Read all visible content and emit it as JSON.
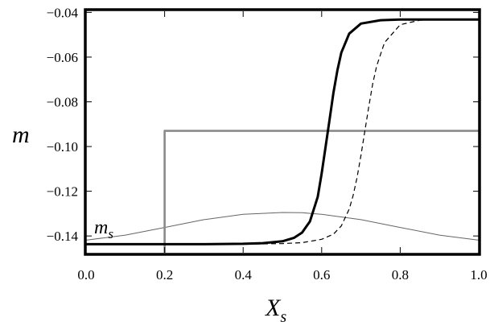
{
  "chart_data": {
    "type": "line",
    "xlabel": "X",
    "xlabel_sub": "s",
    "ylabel": "m",
    "annotation": {
      "text": "m",
      "sub": "s"
    },
    "xlim": [
      0.0,
      1.0
    ],
    "ylim": [
      -0.1475,
      -0.0395
    ],
    "xticks": [
      0.0,
      0.2,
      0.4,
      0.6,
      0.8,
      1.0
    ],
    "xtick_labels": [
      "0.0",
      "0.2",
      "0.4",
      "0.6",
      "0.8",
      "1.0"
    ],
    "yticks": [
      -0.14,
      -0.12,
      -0.1,
      -0.08,
      -0.06,
      -0.04
    ],
    "ytick_labels": [
      "−0.14",
      "−0.12",
      "−0.10",
      "−0.08",
      "−0.06",
      "−0.04"
    ],
    "grid": false,
    "legend": "none",
    "series": [
      {
        "style": "thick-solid",
        "color": "#000000",
        "x": [
          0.0,
          0.3,
          0.4,
          0.45,
          0.5,
          0.53,
          0.55,
          0.57,
          0.59,
          0.6,
          0.61,
          0.62,
          0.63,
          0.64,
          0.65,
          0.67,
          0.7,
          0.75,
          0.8,
          0.9,
          1.0
        ],
        "y": [
          -0.1437,
          -0.1437,
          -0.1435,
          -0.1432,
          -0.1424,
          -0.1408,
          -0.1385,
          -0.1335,
          -0.1225,
          -0.112,
          -0.1,
          -0.088,
          -0.076,
          -0.066,
          -0.058,
          -0.0495,
          -0.045,
          -0.0435,
          -0.0432,
          -0.0432,
          -0.0432
        ]
      },
      {
        "style": "dashed",
        "color": "#000000",
        "x": [
          0.0,
          0.4,
          0.5,
          0.55,
          0.6,
          0.63,
          0.65,
          0.67,
          0.68,
          0.69,
          0.7,
          0.71,
          0.72,
          0.73,
          0.74,
          0.76,
          0.8,
          0.85,
          0.9,
          1.0
        ],
        "y": [
          -0.1437,
          -0.1437,
          -0.1434,
          -0.143,
          -0.1415,
          -0.1392,
          -0.1355,
          -0.128,
          -0.122,
          -0.114,
          -0.104,
          -0.093,
          -0.082,
          -0.072,
          -0.064,
          -0.0535,
          -0.0455,
          -0.0435,
          -0.0432,
          -0.0432
        ]
      },
      {
        "style": "gray-step",
        "color": "#8a8a8a",
        "x": [
          0.2,
          0.2,
          1.0
        ],
        "y": [
          -0.1475,
          -0.093,
          -0.093
        ]
      },
      {
        "style": "thin-gray",
        "color": "#666666",
        "x": [
          0.0,
          0.1,
          0.2,
          0.3,
          0.4,
          0.5,
          0.55,
          0.6,
          0.7,
          0.8,
          0.9,
          1.0
        ],
        "y": [
          -0.1419,
          -0.1396,
          -0.1362,
          -0.1327,
          -0.1303,
          -0.1295,
          -0.1296,
          -0.1303,
          -0.1327,
          -0.1362,
          -0.1396,
          -0.1419
        ]
      }
    ]
  }
}
